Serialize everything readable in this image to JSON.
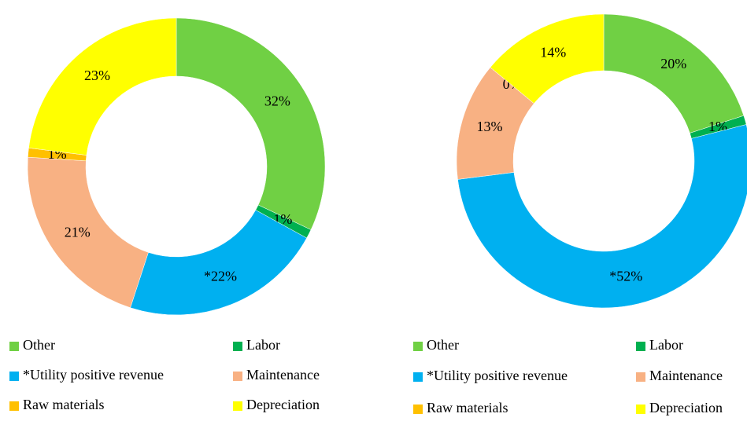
{
  "chart_data": [
    {
      "type": "donut",
      "categories": [
        "Other",
        "Labor",
        "*Utility positive revenue",
        "Maintenance",
        "Raw materials",
        "Depreciation"
      ],
      "colors": [
        "#70d044",
        "#00b050",
        "#00b0f0",
        "#f8b183",
        "#ffc000",
        "#ffff00"
      ],
      "values": [
        32,
        1,
        22,
        21,
        1,
        23
      ],
      "value_labels": [
        "32%",
        "1%",
        "*22%",
        "21%",
        "1%",
        "23%"
      ]
    },
    {
      "type": "donut",
      "categories": [
        "Other",
        "Labor",
        "*Utility positive revenue",
        "Maintenance",
        "Raw materials",
        "Depreciation"
      ],
      "colors": [
        "#70d044",
        "#00b050",
        "#00b0f0",
        "#f8b183",
        "#ffc000",
        "#ffff00"
      ],
      "values": [
        20,
        1,
        52,
        13,
        0,
        14
      ],
      "value_labels": [
        "20%",
        "1%",
        "*52%",
        "13%",
        "0%",
        "14%"
      ]
    }
  ]
}
